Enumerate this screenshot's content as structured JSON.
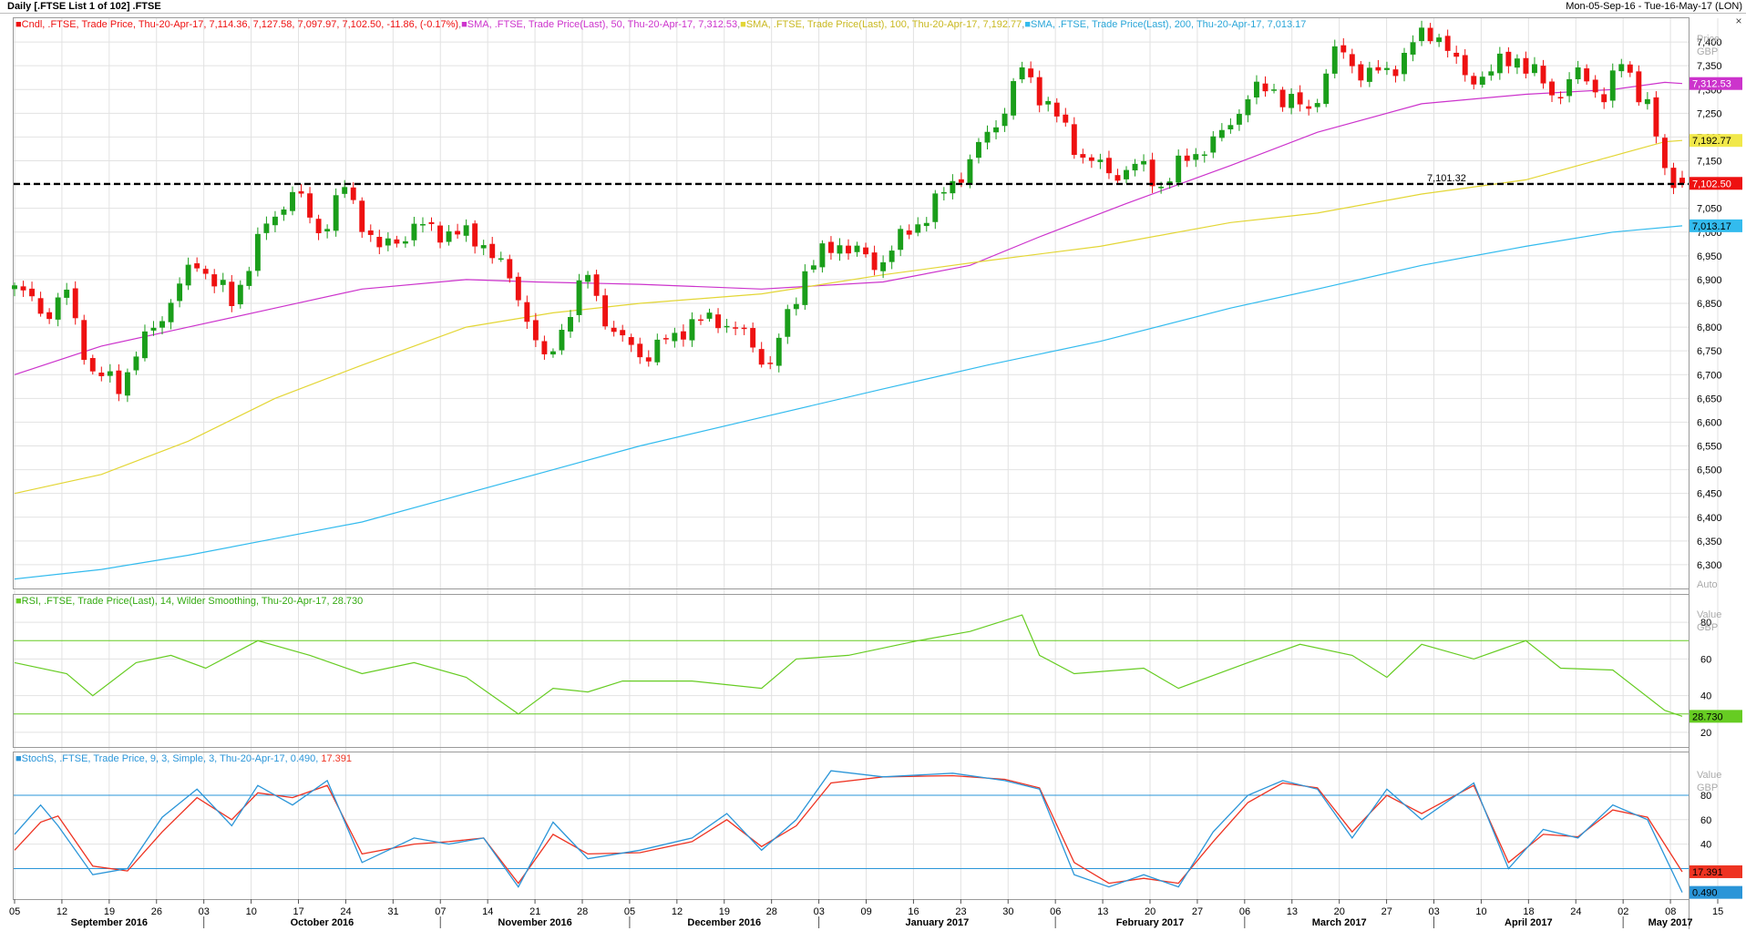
{
  "window": {
    "title": "Daily [.FTSE List 1 of 102] .FTSE",
    "date_range": "Mon-05-Sep-16 - Tue-16-May-17 (LON)",
    "close_glyph": "×"
  },
  "colors": {
    "up": "#1a9e1a",
    "down": "#ee1111",
    "sma50": "#cc33cc",
    "sma100": "#e3d635",
    "sma200": "#33bbee",
    "rsi": "#66cc22",
    "stoch_k": "#2a95d8",
    "stoch_d": "#ee3322"
  },
  "price_panel": {
    "legend": [
      {
        "text": "Cndl, .FTSE, Trade Price, Thu-20-Apr-17, 7,114.36, 7,127.58, 7,097.97, 7,102.50, -11.86, (-0.17%)",
        "color": "#ee1111"
      },
      {
        "text": "SMA, .FTSE, Trade Price(Last),  50, Thu-20-Apr-17, 7,312.53",
        "color": "#cc33cc"
      },
      {
        "text": "SMA, .FTSE, Trade Price(Last),  100, Thu-20-Apr-17, 7,192.77",
        "color": "#e3d635"
      },
      {
        "text": "SMA, .FTSE, Trade Price(Last),  200, Thu-20-Apr-17, 7,013.17",
        "color": "#33bbee"
      }
    ],
    "axis_title": "Price",
    "axis_unit": "GBP",
    "auto_label": "Auto",
    "hline_label": "7,101.32",
    "value_tags": [
      {
        "text": "7,312.53",
        "value": 7312.53,
        "bg": "#cc33cc",
        "fg": "#ffffff"
      },
      {
        "text": "7,192.77",
        "value": 7192.77,
        "bg": "#f1e84a",
        "fg": "#000000"
      },
      {
        "text": "7,102.50",
        "value": 7102.5,
        "bg": "#ee1111",
        "fg": "#ffffff"
      },
      {
        "text": "7,013.17",
        "value": 7013.17,
        "bg": "#33bbee",
        "fg": "#000000"
      }
    ]
  },
  "rsi_panel": {
    "legend": "RSI, .FTSE, Trade Price(Last),  14, Wilder Smoothing, Thu-20-Apr-17, 28.730",
    "axis_title": "Value",
    "axis_unit": "GBP",
    "value_tag": "28.730",
    "value_tag_value": 28.73
  },
  "stoch_panel": {
    "legend_main": "StochS, .FTSE, Trade Price,  9, 3, Simple, 3, Thu-20-Apr-17, 0.490, ",
    "legend_tail": "17.391",
    "axis_title": "Value",
    "axis_unit": "GBP",
    "tag_d": "17.391",
    "tag_d_value": 17.391,
    "tag_k": "0.490",
    "tag_k_value": 0.49
  },
  "x_axis": {
    "day_labels": [
      "05",
      "12",
      "19",
      "26",
      "03",
      "10",
      "17",
      "24",
      "31",
      "07",
      "14",
      "21",
      "28",
      "05",
      "12",
      "19",
      "28",
      "03",
      "09",
      "16",
      "23",
      "30",
      "06",
      "13",
      "20",
      "27",
      "06",
      "13",
      "20",
      "27",
      "03",
      "10",
      "18",
      "24",
      "02",
      "08",
      "15"
    ],
    "months": [
      "September 2016",
      "October 2016",
      "November 2016",
      "December 2016",
      "January 2017",
      "February 2017",
      "March 2017",
      "April 2017",
      "May 2017"
    ]
  },
  "chart_data": [
    {
      "type": "candlestick",
      "title": "Daily [.FTSE List 1 of 102] .FTSE",
      "ylabel": "Price GBP",
      "ylim": [
        6250,
        7450
      ],
      "yticks": [
        6300,
        6350,
        6400,
        6450,
        6500,
        6550,
        6600,
        6650,
        6700,
        6750,
        6800,
        6850,
        6900,
        6950,
        7000,
        7050,
        7100,
        7150,
        7200,
        7250,
        7300,
        7350,
        7400
      ],
      "horizontal_line": 7101.32,
      "candle_anchors": [
        [
          0,
          6880
        ],
        [
          4,
          6830
        ],
        [
          6,
          6870
        ],
        [
          9,
          6700
        ],
        [
          12,
          6680
        ],
        [
          16,
          6800
        ],
        [
          21,
          6940
        ],
        [
          25,
          6850
        ],
        [
          28,
          6980
        ],
        [
          32,
          7090
        ],
        [
          35,
          7000
        ],
        [
          38,
          7090
        ],
        [
          42,
          6960
        ],
        [
          46,
          7010
        ],
        [
          50,
          7000
        ],
        [
          54,
          6980
        ],
        [
          58,
          6870
        ],
        [
          61,
          6720
        ],
        [
          63,
          6800
        ],
        [
          66,
          6910
        ],
        [
          69,
          6780
        ],
        [
          73,
          6740
        ],
        [
          77,
          6800
        ],
        [
          81,
          6820
        ],
        [
          84,
          6780
        ],
        [
          87,
          6720
        ],
        [
          91,
          6920
        ],
        [
          95,
          6980
        ],
        [
          99,
          6930
        ],
        [
          103,
          7000
        ],
        [
          107,
          7080
        ],
        [
          110,
          7150
        ],
        [
          113,
          7230
        ],
        [
          116,
          7340
        ],
        [
          119,
          7270
        ],
        [
          122,
          7180
        ],
        [
          126,
          7120
        ],
        [
          129,
          7140
        ],
        [
          132,
          7100
        ],
        [
          136,
          7170
        ],
        [
          139,
          7200
        ],
        [
          142,
          7290
        ],
        [
          145,
          7300
        ],
        [
          149,
          7250
        ],
        [
          152,
          7380
        ],
        [
          155,
          7340
        ],
        [
          158,
          7330
        ],
        [
          161,
          7400
        ],
        [
          164,
          7420
        ],
        [
          167,
          7320
        ],
        [
          170,
          7340
        ],
        [
          173,
          7370
        ],
        [
          177,
          7290
        ],
        [
          180,
          7330
        ],
        [
          183,
          7290
        ],
        [
          185,
          7350
        ],
        [
          186,
          7330
        ],
        [
          188,
          7270
        ],
        [
          190,
          7120
        ],
        [
          192,
          7102.5
        ]
      ],
      "last_candle": {
        "date": "Thu-20-Apr-17",
        "open": 7114.36,
        "high": 7127.58,
        "low": 7097.97,
        "close": 7102.5,
        "change": -11.86,
        "change_pct": -0.17
      },
      "series": [
        {
          "name": "SMA 50",
          "points": [
            [
              0,
              6700
            ],
            [
              10,
              6760
            ],
            [
              20,
              6800
            ],
            [
              30,
              6840
            ],
            [
              40,
              6880
            ],
            [
              52,
              6900
            ],
            [
              60,
              6895
            ],
            [
              72,
              6890
            ],
            [
              86,
              6880
            ],
            [
              100,
              6895
            ],
            [
              110,
              6930
            ],
            [
              118,
              6990
            ],
            [
              128,
              7060
            ],
            [
              140,
              7140
            ],
            [
              150,
              7210
            ],
            [
              162,
              7270
            ],
            [
              174,
              7290
            ],
            [
              184,
              7300
            ],
            [
              190,
              7315
            ],
            [
              192,
              7312.53
            ]
          ]
        },
        {
          "name": "SMA 100",
          "points": [
            [
              0,
              6450
            ],
            [
              10,
              6490
            ],
            [
              20,
              6560
            ],
            [
              30,
              6650
            ],
            [
              40,
              6720
            ],
            [
              52,
              6800
            ],
            [
              62,
              6830
            ],
            [
              72,
              6850
            ],
            [
              86,
              6870
            ],
            [
              100,
              6910
            ],
            [
              112,
              6940
            ],
            [
              125,
              6970
            ],
            [
              140,
              7020
            ],
            [
              150,
              7040
            ],
            [
              162,
              7080
            ],
            [
              174,
              7110
            ],
            [
              184,
              7160
            ],
            [
              190,
              7190
            ],
            [
              192,
              7192.77
            ]
          ]
        },
        {
          "name": "SMA 200",
          "points": [
            [
              0,
              6270
            ],
            [
              10,
              6290
            ],
            [
              20,
              6320
            ],
            [
              30,
              6355
            ],
            [
              40,
              6390
            ],
            [
              50,
              6440
            ],
            [
              60,
              6490
            ],
            [
              72,
              6550
            ],
            [
              86,
              6610
            ],
            [
              100,
              6670
            ],
            [
              112,
              6720
            ],
            [
              125,
              6770
            ],
            [
              140,
              6840
            ],
            [
              150,
              6880
            ],
            [
              162,
              6930
            ],
            [
              174,
              6970
            ],
            [
              184,
              7000
            ],
            [
              192,
              7013.17
            ]
          ]
        }
      ]
    },
    {
      "type": "line",
      "title": "RSI, .FTSE, Trade Price(Last),  14, Wilder Smoothing",
      "ylabel": "Value GBP",
      "ylim": [
        12,
        95
      ],
      "yticks": [
        20,
        40,
        60,
        80
      ],
      "reference_lines": [
        30,
        70
      ],
      "series": [
        {
          "name": "RSI 14",
          "points": [
            [
              0,
              58
            ],
            [
              6,
              52
            ],
            [
              9,
              40
            ],
            [
              14,
              58
            ],
            [
              18,
              62
            ],
            [
              22,
              55
            ],
            [
              28,
              70
            ],
            [
              34,
              62
            ],
            [
              40,
              52
            ],
            [
              46,
              58
            ],
            [
              52,
              50
            ],
            [
              58,
              30
            ],
            [
              62,
              44
            ],
            [
              66,
              42
            ],
            [
              70,
              48
            ],
            [
              78,
              48
            ],
            [
              86,
              44
            ],
            [
              90,
              60
            ],
            [
              96,
              62
            ],
            [
              104,
              70
            ],
            [
              110,
              75
            ],
            [
              116,
              84
            ],
            [
              118,
              62
            ],
            [
              122,
              52
            ],
            [
              130,
              55
            ],
            [
              134,
              44
            ],
            [
              142,
              58
            ],
            [
              148,
              68
            ],
            [
              154,
              62
            ],
            [
              158,
              50
            ],
            [
              162,
              68
            ],
            [
              168,
              60
            ],
            [
              174,
              70
            ],
            [
              178,
              55
            ],
            [
              184,
              54
            ],
            [
              190,
              32
            ],
            [
              192,
              28.73
            ]
          ]
        }
      ]
    },
    {
      "type": "line",
      "title": "StochS, .FTSE, Trade Price,  9, 3, Simple, 3",
      "ylabel": "Value GBP",
      "ylim": [
        -5,
        115
      ],
      "yticks": [
        20,
        40,
        60,
        80
      ],
      "reference_lines": [
        20,
        80
      ],
      "series": [
        {
          "name": "%K",
          "points": [
            [
              0,
              48
            ],
            [
              3,
              72
            ],
            [
              5,
              55
            ],
            [
              9,
              15
            ],
            [
              13,
              20
            ],
            [
              17,
              62
            ],
            [
              21,
              85
            ],
            [
              25,
              55
            ],
            [
              28,
              88
            ],
            [
              32,
              72
            ],
            [
              36,
              92
            ],
            [
              40,
              25
            ],
            [
              46,
              45
            ],
            [
              50,
              40
            ],
            [
              54,
              45
            ],
            [
              58,
              5
            ],
            [
              62,
              58
            ],
            [
              66,
              28
            ],
            [
              72,
              35
            ],
            [
              78,
              45
            ],
            [
              82,
              65
            ],
            [
              86,
              35
            ],
            [
              90,
              60
            ],
            [
              94,
              100
            ],
            [
              100,
              95
            ],
            [
              108,
              98
            ],
            [
              114,
              92
            ],
            [
              118,
              85
            ],
            [
              122,
              15
            ],
            [
              126,
              5
            ],
            [
              130,
              15
            ],
            [
              134,
              5
            ],
            [
              138,
              50
            ],
            [
              142,
              80
            ],
            [
              146,
              92
            ],
            [
              150,
              85
            ],
            [
              154,
              45
            ],
            [
              158,
              85
            ],
            [
              162,
              60
            ],
            [
              168,
              90
            ],
            [
              172,
              20
            ],
            [
              176,
              52
            ],
            [
              180,
              45
            ],
            [
              184,
              72
            ],
            [
              188,
              60
            ],
            [
              192,
              0.49
            ]
          ]
        },
        {
          "name": "%D",
          "points": [
            [
              0,
              35
            ],
            [
              3,
              58
            ],
            [
              5,
              63
            ],
            [
              9,
              22
            ],
            [
              13,
              18
            ],
            [
              17,
              50
            ],
            [
              21,
              78
            ],
            [
              25,
              60
            ],
            [
              28,
              82
            ],
            [
              32,
              78
            ],
            [
              36,
              88
            ],
            [
              40,
              32
            ],
            [
              46,
              40
            ],
            [
              50,
              42
            ],
            [
              54,
              45
            ],
            [
              58,
              8
            ],
            [
              62,
              48
            ],
            [
              66,
              32
            ],
            [
              72,
              33
            ],
            [
              78,
              42
            ],
            [
              82,
              60
            ],
            [
              86,
              38
            ],
            [
              90,
              55
            ],
            [
              94,
              90
            ],
            [
              100,
              95
            ],
            [
              108,
              96
            ],
            [
              114,
              93
            ],
            [
              118,
              86
            ],
            [
              122,
              25
            ],
            [
              126,
              8
            ],
            [
              130,
              12
            ],
            [
              134,
              8
            ],
            [
              138,
              42
            ],
            [
              142,
              74
            ],
            [
              146,
              90
            ],
            [
              150,
              86
            ],
            [
              154,
              50
            ],
            [
              158,
              80
            ],
            [
              162,
              65
            ],
            [
              168,
              88
            ],
            [
              172,
              25
            ],
            [
              176,
              48
            ],
            [
              180,
              46
            ],
            [
              184,
              68
            ],
            [
              188,
              62
            ],
            [
              192,
              17.391
            ]
          ]
        }
      ]
    }
  ]
}
